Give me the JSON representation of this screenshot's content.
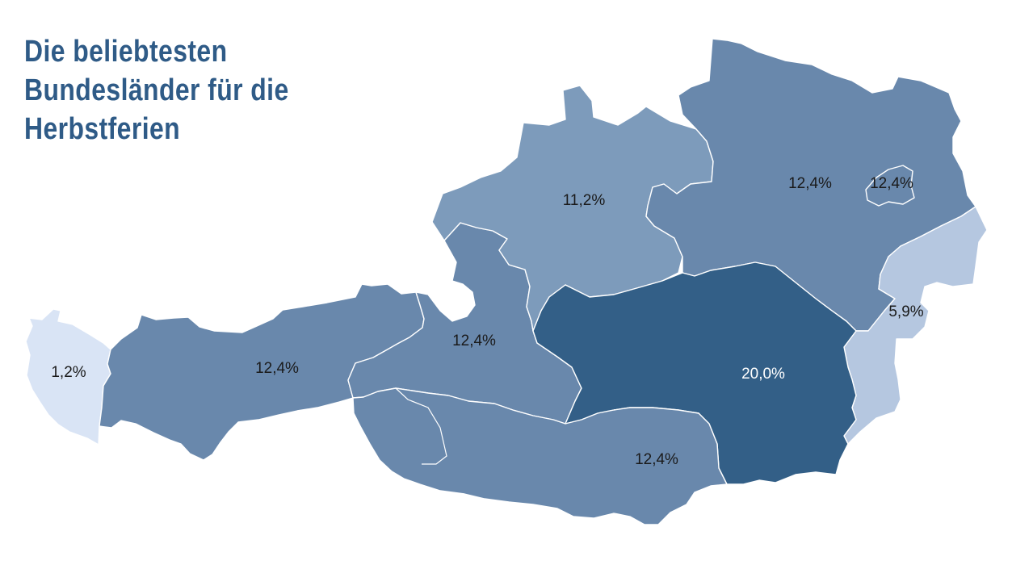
{
  "title": {
    "line1": "Die beliebtesten",
    "line2": "Bundesländer für die",
    "line3": "Herbstferien"
  },
  "colors": {
    "title": "#2f5b87",
    "scale_lowest": "#d9e4f5",
    "scale_low": "#b5c7e0",
    "scale_mid": "#7d9bbb",
    "scale_high": "#6988ac",
    "scale_highest": "#335f87"
  },
  "regions": [
    {
      "key": "vorarlberg",
      "label": "1,2%",
      "value": 1.2,
      "color": "#d9e4f5",
      "label_color": "#1a1a1a"
    },
    {
      "key": "tirol",
      "label": "12,4%",
      "value": 12.4,
      "color": "#6988ac",
      "label_color": "#1a1a1a"
    },
    {
      "key": "salzburg",
      "label": "12,4%",
      "value": 12.4,
      "color": "#6988ac",
      "label_color": "#1a1a1a"
    },
    {
      "key": "oberoesterreich",
      "label": "11,2%",
      "value": 11.2,
      "color": "#7d9bbb",
      "label_color": "#1a1a1a"
    },
    {
      "key": "niederoesterreich",
      "label": "12,4%",
      "value": 12.4,
      "color": "#6988ac",
      "label_color": "#1a1a1a"
    },
    {
      "key": "wien",
      "label": "12,4%",
      "value": 12.4,
      "color": "#6988ac",
      "label_color": "#1a1a1a"
    },
    {
      "key": "burgenland",
      "label": "5,9%",
      "value": 5.9,
      "color": "#b5c7e0",
      "label_color": "#1a1a1a"
    },
    {
      "key": "steiermark",
      "label": "20,0%",
      "value": 20.0,
      "color": "#335f87",
      "label_color": "#ffffff"
    },
    {
      "key": "kaernten",
      "label": "12,4%",
      "value": 12.4,
      "color": "#6988ac",
      "label_color": "#1a1a1a"
    }
  ]
}
